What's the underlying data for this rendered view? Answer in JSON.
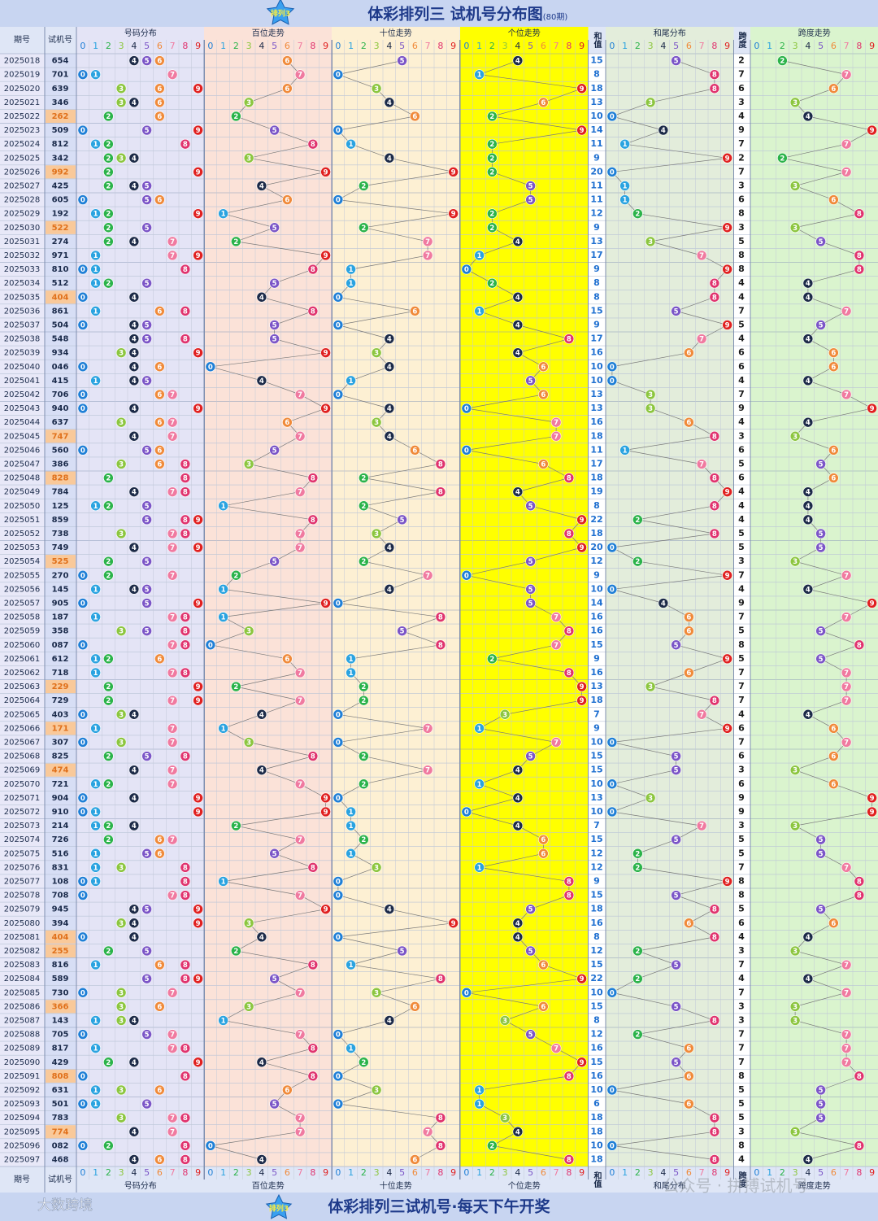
{
  "title": "体彩排列三 试机号分布图",
  "subtitle": "(80期)",
  "logo": "排列3",
  "headers": {
    "issue": "期号",
    "number": "试机号",
    "dist": "号码分布",
    "hundreds": "百位走势",
    "tens": "十位走势",
    "units": "个位走势",
    "sum": "和值",
    "hewei": "和尾分布",
    "span": "跨度",
    "span_trend": "跨度走势"
  },
  "digits": [
    0,
    1,
    2,
    3,
    4,
    5,
    6,
    7,
    8,
    9
  ],
  "digit_colors": [
    "#1f7fd6",
    "#2aa3e0",
    "#2bb34a",
    "#8cc63f",
    "#1c2a48",
    "#7b55c7",
    "#f08a3a",
    "#f07aa0",
    "#e0336e",
    "#e02020"
  ],
  "rows": [
    {
      "issue": "2025018",
      "number": "654",
      "sum": 15,
      "span": 2
    },
    {
      "issue": "2025019",
      "number": "701",
      "sum": 8,
      "span": 7
    },
    {
      "issue": "2025020",
      "number": "639",
      "sum": 18,
      "span": 6
    },
    {
      "issue": "2025021",
      "number": "346",
      "sum": 13,
      "span": 3
    },
    {
      "issue": "2025022",
      "number": "262",
      "sum": 10,
      "span": 4
    },
    {
      "issue": "2025023",
      "number": "509",
      "sum": 14,
      "span": 9
    },
    {
      "issue": "2025024",
      "number": "812",
      "sum": 11,
      "span": 7
    },
    {
      "issue": "2025025",
      "number": "342",
      "sum": 9,
      "span": 2
    },
    {
      "issue": "2025026",
      "number": "992",
      "sum": 20,
      "span": 7
    },
    {
      "issue": "2025027",
      "number": "425",
      "sum": 11,
      "span": 3
    },
    {
      "issue": "2025028",
      "number": "605",
      "sum": 11,
      "span": 6
    },
    {
      "issue": "2025029",
      "number": "192",
      "sum": 12,
      "span": 8
    },
    {
      "issue": "2025030",
      "number": "522",
      "sum": 9,
      "span": 3
    },
    {
      "issue": "2025031",
      "number": "274",
      "sum": 13,
      "span": 5
    },
    {
      "issue": "2025032",
      "number": "971",
      "sum": 17,
      "span": 8
    },
    {
      "issue": "2025033",
      "number": "810",
      "sum": 9,
      "span": 8
    },
    {
      "issue": "2025034",
      "number": "512",
      "sum": 8,
      "span": 4
    },
    {
      "issue": "2025035",
      "number": "404",
      "sum": 8,
      "span": 4
    },
    {
      "issue": "2025036",
      "number": "861",
      "sum": 15,
      "span": 7
    },
    {
      "issue": "2025037",
      "number": "504",
      "sum": 9,
      "span": 5
    },
    {
      "issue": "2025038",
      "number": "548",
      "sum": 17,
      "span": 4
    },
    {
      "issue": "2025039",
      "number": "934",
      "sum": 16,
      "span": 6
    },
    {
      "issue": "2025040",
      "number": "046",
      "sum": 10,
      "span": 6
    },
    {
      "issue": "2025041",
      "number": "415",
      "sum": 10,
      "span": 4
    },
    {
      "issue": "2025042",
      "number": "706",
      "sum": 13,
      "span": 7
    },
    {
      "issue": "2025043",
      "number": "940",
      "sum": 13,
      "span": 9
    },
    {
      "issue": "2025044",
      "number": "637",
      "sum": 16,
      "span": 4
    },
    {
      "issue": "2025045",
      "number": "747",
      "sum": 18,
      "span": 3
    },
    {
      "issue": "2025046",
      "number": "560",
      "sum": 11,
      "span": 6
    },
    {
      "issue": "2025047",
      "number": "386",
      "sum": 17,
      "span": 5
    },
    {
      "issue": "2025048",
      "number": "828",
      "sum": 18,
      "span": 6
    },
    {
      "issue": "2025049",
      "number": "784",
      "sum": 19,
      "span": 4
    },
    {
      "issue": "2025050",
      "number": "125",
      "sum": 8,
      "span": 4
    },
    {
      "issue": "2025051",
      "number": "859",
      "sum": 22,
      "span": 4
    },
    {
      "issue": "2025052",
      "number": "738",
      "sum": 18,
      "span": 5
    },
    {
      "issue": "2025053",
      "number": "749",
      "sum": 20,
      "span": 5
    },
    {
      "issue": "2025054",
      "number": "525",
      "sum": 12,
      "span": 3
    },
    {
      "issue": "2025055",
      "number": "270",
      "sum": 9,
      "span": 7
    },
    {
      "issue": "2025056",
      "number": "145",
      "sum": 10,
      "span": 4
    },
    {
      "issue": "2025057",
      "number": "905",
      "sum": 14,
      "span": 9
    },
    {
      "issue": "2025058",
      "number": "187",
      "sum": 16,
      "span": 7
    },
    {
      "issue": "2025059",
      "number": "358",
      "sum": 16,
      "span": 5
    },
    {
      "issue": "2025060",
      "number": "087",
      "sum": 15,
      "span": 8
    },
    {
      "issue": "2025061",
      "number": "612",
      "sum": 9,
      "span": 5
    },
    {
      "issue": "2025062",
      "number": "718",
      "sum": 16,
      "span": 7
    },
    {
      "issue": "2025063",
      "number": "229",
      "sum": 13,
      "span": 7
    },
    {
      "issue": "2025064",
      "number": "729",
      "sum": 18,
      "span": 7
    },
    {
      "issue": "2025065",
      "number": "403",
      "sum": 7,
      "span": 4
    },
    {
      "issue": "2025066",
      "number": "171",
      "sum": 9,
      "span": 6
    },
    {
      "issue": "2025067",
      "number": "307",
      "sum": 10,
      "span": 7
    },
    {
      "issue": "2025068",
      "number": "825",
      "sum": 15,
      "span": 6
    },
    {
      "issue": "2025069",
      "number": "474",
      "sum": 15,
      "span": 3
    },
    {
      "issue": "2025070",
      "number": "721",
      "sum": 10,
      "span": 6
    },
    {
      "issue": "2025071",
      "number": "904",
      "sum": 13,
      "span": 9
    },
    {
      "issue": "2025072",
      "number": "910",
      "sum": 10,
      "span": 9
    },
    {
      "issue": "2025073",
      "number": "214",
      "sum": 7,
      "span": 3
    },
    {
      "issue": "2025074",
      "number": "726",
      "sum": 15,
      "span": 5
    },
    {
      "issue": "2025075",
      "number": "516",
      "sum": 12,
      "span": 5
    },
    {
      "issue": "2025076",
      "number": "831",
      "sum": 12,
      "span": 7
    },
    {
      "issue": "2025077",
      "number": "108",
      "sum": 9,
      "span": 8
    },
    {
      "issue": "2025078",
      "number": "708",
      "sum": 15,
      "span": 8
    },
    {
      "issue": "2025079",
      "number": "945",
      "sum": 18,
      "span": 5
    },
    {
      "issue": "2025080",
      "number": "394",
      "sum": 16,
      "span": 6
    },
    {
      "issue": "2025081",
      "number": "404",
      "sum": 8,
      "span": 4
    },
    {
      "issue": "2025082",
      "number": "255",
      "sum": 12,
      "span": 3
    },
    {
      "issue": "2025083",
      "number": "816",
      "sum": 15,
      "span": 7
    },
    {
      "issue": "2025084",
      "number": "589",
      "sum": 22,
      "span": 4
    },
    {
      "issue": "2025085",
      "number": "730",
      "sum": 10,
      "span": 7
    },
    {
      "issue": "2025086",
      "number": "366",
      "sum": 15,
      "span": 3
    },
    {
      "issue": "2025087",
      "number": "143",
      "sum": 8,
      "span": 3
    },
    {
      "issue": "2025088",
      "number": "705",
      "sum": 12,
      "span": 7
    },
    {
      "issue": "2025089",
      "number": "817",
      "sum": 16,
      "span": 7
    },
    {
      "issue": "2025090",
      "number": "429",
      "sum": 15,
      "span": 7
    },
    {
      "issue": "2025091",
      "number": "808",
      "sum": 16,
      "span": 8
    },
    {
      "issue": "2025092",
      "number": "631",
      "sum": 10,
      "span": 5
    },
    {
      "issue": "2025093",
      "number": "501",
      "sum": 6,
      "span": 5
    },
    {
      "issue": "2025094",
      "number": "783",
      "sum": 18,
      "span": 5
    },
    {
      "issue": "2025095",
      "number": "774",
      "sum": 18,
      "span": 3
    },
    {
      "issue": "2025096",
      "number": "082",
      "sum": 10,
      "span": 8
    },
    {
      "issue": "2025097",
      "number": "468",
      "sum": 18,
      "span": 4
    }
  ],
  "footer": {
    "slogan": "体彩排列三试机号·每天下午开奖",
    "brand": "大数跨境",
    "watermark": "公众号 · 拼搏试机号"
  }
}
